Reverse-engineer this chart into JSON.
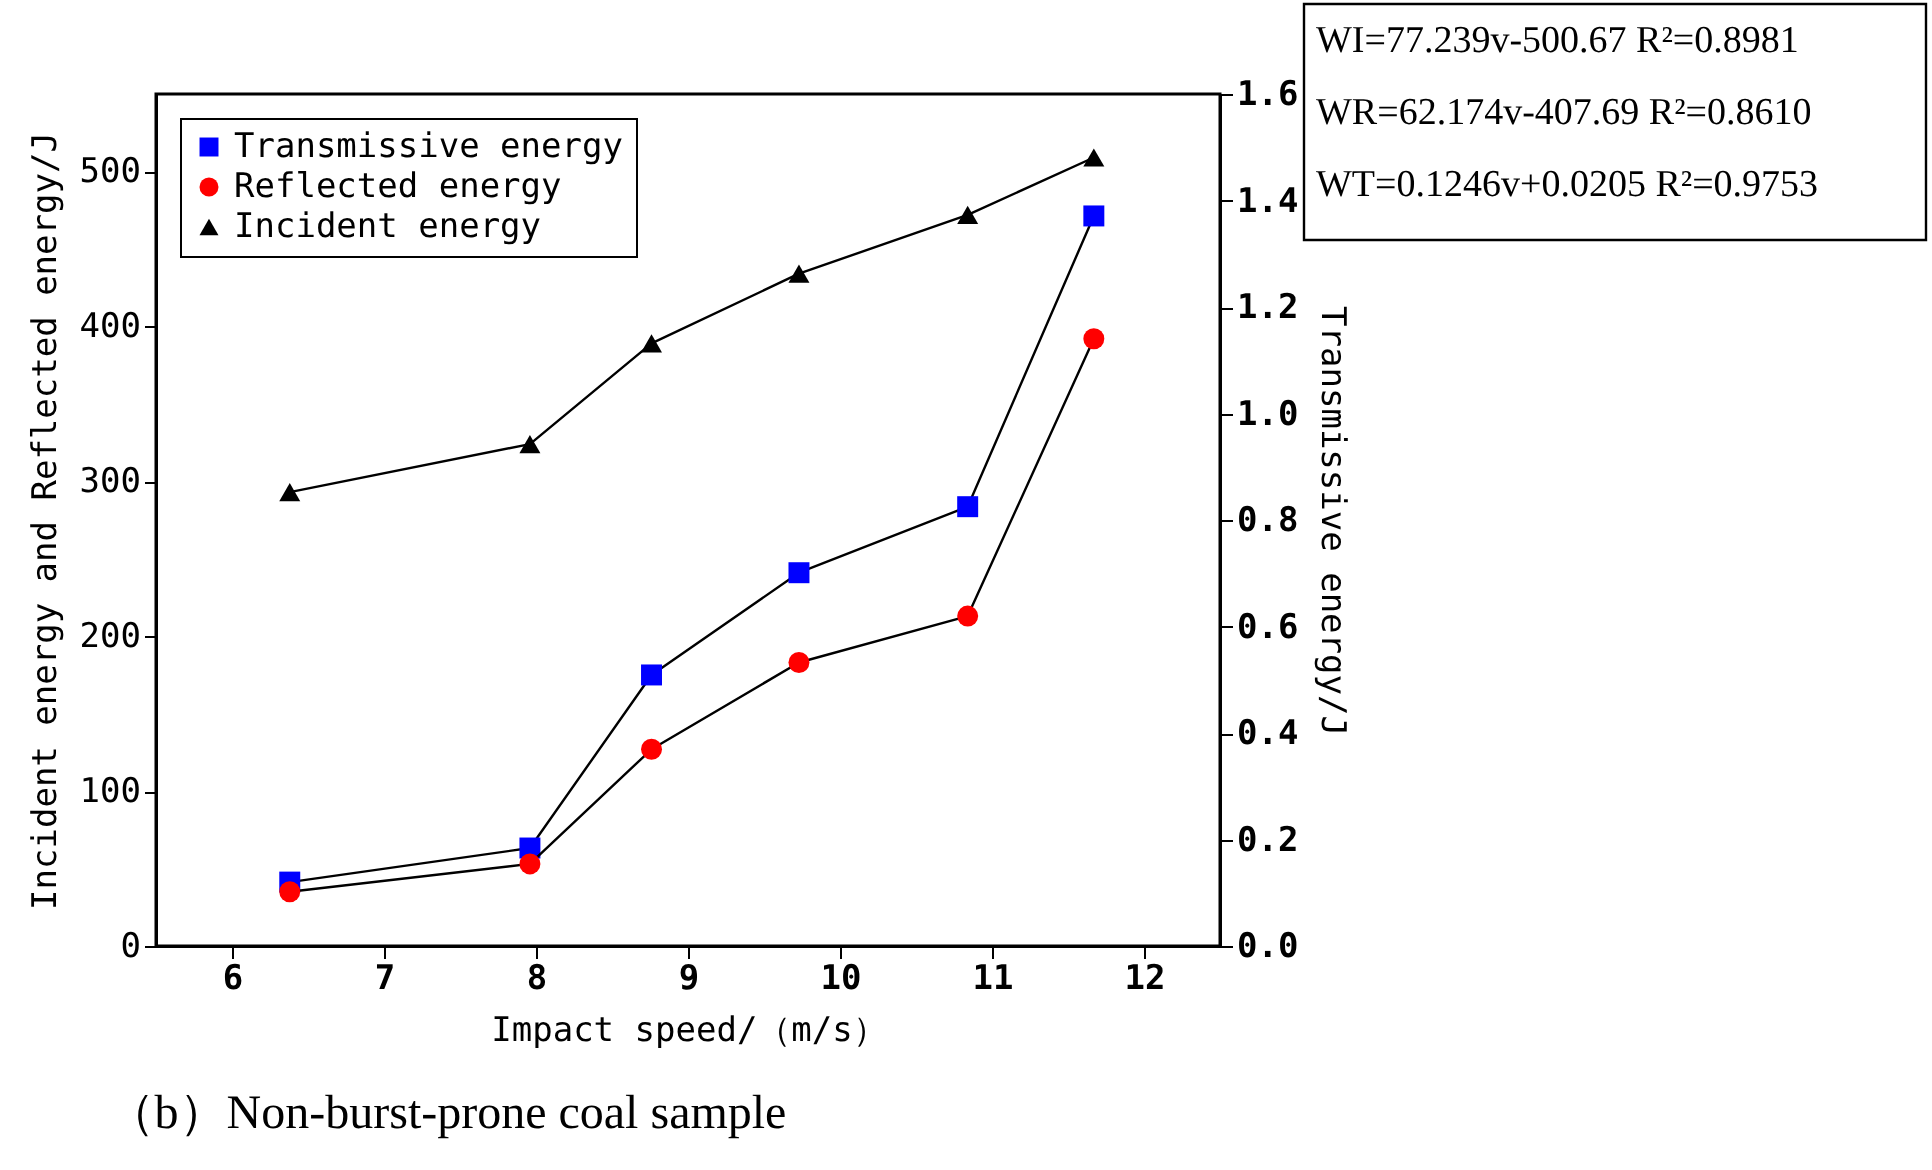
{
  "chart_data": {
    "type": "line",
    "title": "（b）Non-burst-prone coal sample",
    "xlabel": "Impact speed/（m/s）",
    "ylabel": "Incident energy and Reflected energy/J",
    "y2label": "Transmissive energy/J",
    "x": [
      6.38,
      7.96,
      8.76,
      9.73,
      10.84,
      11.67
    ],
    "series": [
      {
        "name": "Transmissive energy",
        "color": "#0000ff",
        "marker": "square",
        "axis": "y2",
        "values": [
          0.12,
          0.184,
          0.509,
          0.701,
          0.825,
          1.371
        ]
      },
      {
        "name": "Reflected energy",
        "color": "#ff0000",
        "marker": "circle",
        "values": [
          35,
          53,
          127,
          183,
          213,
          392
        ]
      },
      {
        "name": "Incident energy",
        "color": "#000000",
        "marker": "triangle",
        "values": [
          293,
          324,
          389,
          434,
          472,
          509
        ]
      }
    ],
    "xlim": [
      5.5,
      12.5
    ],
    "xticks": [
      6,
      7,
      8,
      9,
      10,
      11,
      12
    ],
    "ylim": [
      0,
      550
    ],
    "yticks": [
      0,
      100,
      200,
      300,
      400,
      500
    ],
    "y2lim": [
      0,
      1.6
    ],
    "y2ticks": [
      {
        "value": 0,
        "label": "0.0"
      },
      0.2,
      0.4,
      0.6,
      0.8,
      {
        "value": 1,
        "label": "1.0"
      },
      1.2,
      1.4,
      1.6
    ],
    "annotations": [
      "WI=77.239v-500.67   R²=0.8981",
      "WR=62.174v-407.69   R²=0.8610",
      "WT=0.1246v+0.0205   R²=0.9753"
    ],
    "legend": "top left",
    "grid": false,
    "line_style": "solid"
  }
}
